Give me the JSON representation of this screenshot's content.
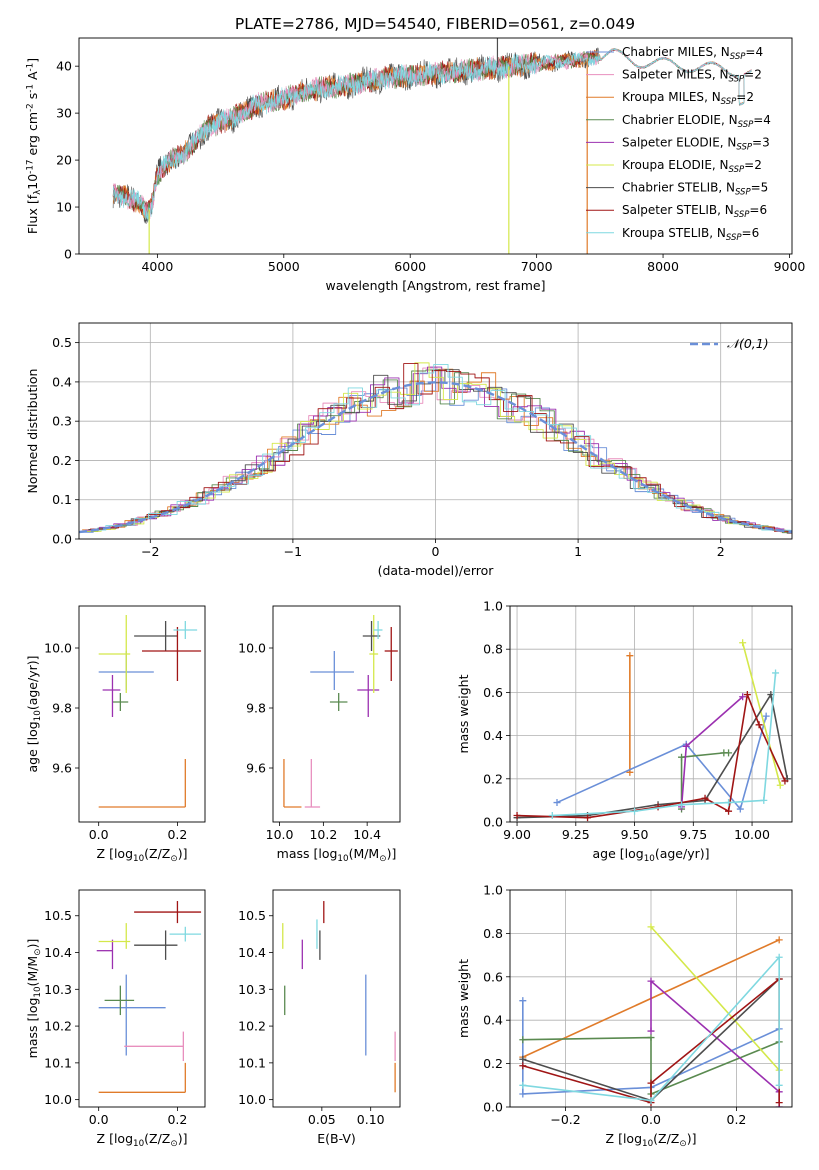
{
  "figure_title": "PLATE=2786, MJD=54540, FIBERID=0561, z=0.049",
  "colors": {
    "Chabrier MILES": "#6a8fd8",
    "Salpeter MILES": "#e88fbe",
    "Kroupa MILES": "#e07b2a",
    "Chabrier ELODIE": "#5a8a50",
    "Salpeter ELODIE": "#9b30b0",
    "Kroupa ELODIE": "#d4e84a",
    "Chabrier STELIB": "#4d4d4d",
    "Salpeter STELIB": "#a01515",
    "Kroupa STELIB": "#7fd8e0"
  },
  "chart_data": [
    {
      "id": "spectrum",
      "type": "line",
      "xlabel": "wavelength [Angstrom, rest frame]",
      "ylabel": "Flux [f$_\\lambda$10$^{-17}$ erg cm$^{-2}$ s$^{-1}$ A$^{-1}$]",
      "xlim": [
        3380,
        9020
      ],
      "ylim": [
        0,
        46
      ],
      "xticks": [
        4000,
        5000,
        6000,
        7000,
        8000,
        9000
      ],
      "yticks": [
        0,
        10,
        20,
        30,
        40
      ],
      "grid": false,
      "legend_position": "right",
      "legend": [
        {
          "model": "Chabrier MILES",
          "nssp": "4"
        },
        {
          "model": "Salpeter MILES",
          "nssp": "2"
        },
        {
          "model": "Kroupa MILES",
          "nssp": "2"
        },
        {
          "model": "Chabrier ELODIE",
          "nssp": "4"
        },
        {
          "model": "Salpeter ELODIE",
          "nssp": "3"
        },
        {
          "model": "Kroupa ELODIE",
          "nssp": "2"
        },
        {
          "model": "Chabrier STELIB",
          "nssp": "5"
        },
        {
          "model": "Salpeter STELIB",
          "nssp": "6"
        },
        {
          "model": "Kroupa STELIB",
          "nssp": "6"
        }
      ],
      "continuum": {
        "x": [
          3650,
          3750,
          3850,
          3920,
          3950,
          4000,
          4100,
          4200,
          4300,
          4400,
          4500,
          4600,
          4800,
          5000,
          5200,
          5400,
          5600,
          5800,
          6000,
          6200,
          6400,
          6600,
          6800,
          7000,
          7200,
          7400,
          7500,
          7600,
          7800,
          8000,
          8200,
          8400,
          8600,
          8700
        ],
        "y": [
          13,
          12,
          11,
          9,
          10,
          17,
          20,
          21,
          24,
          27,
          28,
          29,
          32,
          33,
          35,
          35.5,
          36.5,
          37.5,
          38,
          38.5,
          39,
          39.5,
          40,
          40.5,
          41,
          41.5,
          42,
          42.5,
          41,
          40.5,
          40,
          39.5,
          39,
          38.5
        ]
      },
      "spikes": [
        {
          "x": 3935,
          "y": 0,
          "color": "Kroupa ELODIE"
        },
        {
          "x": 6780,
          "y": 0,
          "color": "Kroupa ELODIE"
        },
        {
          "x": 7400,
          "y": 0,
          "color": "Kroupa MILES"
        },
        {
          "x": 6690,
          "y": 46,
          "color": "Chabrier STELIB"
        }
      ]
    },
    {
      "id": "residuals",
      "type": "histogram",
      "xlabel": "(data-model)/error",
      "ylabel": "Normed distribution",
      "xlim": [
        -2.5,
        2.5
      ],
      "ylim": [
        0,
        0.55
      ],
      "xticks": [
        -2,
        -1,
        0,
        1,
        2
      ],
      "yticks": [
        0.0,
        0.1,
        0.2,
        0.3,
        0.4,
        0.5
      ],
      "grid": true,
      "legend_position": "upper right",
      "bin_width": 0.1,
      "reference_curve": "normal(0,1)",
      "reference_label": "$\\mathcal{N}(0,1)$",
      "reference_color": "Chabrier MILES"
    },
    {
      "id": "age_vs_Z",
      "type": "errorbar",
      "xlabel": "Z [log$_{10}$(Z/Z$_\\odot$)]",
      "ylabel": "age  [log$_{10}$(age/yr)]",
      "xlim": [
        -0.05,
        0.27
      ],
      "ylim": [
        9.42,
        10.14
      ],
      "xticks": [
        0.0,
        0.2
      ],
      "yticks": [
        9.6,
        9.8,
        10.0
      ],
      "grid": false,
      "points": [
        {
          "model": "Chabrier MILES",
          "x": 0.07,
          "y": 9.92,
          "xerr": [
            0.07,
            0.07
          ],
          "yerr": [
            0.06,
            0.07
          ]
        },
        {
          "model": "Salpeter MILES",
          "x": 0.215,
          "y": 9.47,
          "xerr": [
            0.0,
            0.0
          ],
          "yerr": [
            0.0,
            0.0
          ]
        },
        {
          "model": "Kroupa MILES",
          "x": 0.22,
          "y": 9.47,
          "xerr": [
            0.22,
            0.0
          ],
          "yerr": [
            0.0,
            0.16
          ]
        },
        {
          "model": "Chabrier ELODIE",
          "x": 0.055,
          "y": 9.82,
          "xerr": [
            0.02,
            0.02
          ],
          "yerr": [
            0.03,
            0.03
          ]
        },
        {
          "model": "Salpeter ELODIE",
          "x": 0.035,
          "y": 9.86,
          "xerr": [
            0.025,
            0.02
          ],
          "yerr": [
            0.09,
            0.05
          ]
        },
        {
          "model": "Kroupa ELODIE",
          "x": 0.07,
          "y": 9.98,
          "xerr": [
            0.07,
            0.01
          ],
          "yerr": [
            0.13,
            0.13
          ]
        },
        {
          "model": "Chabrier STELIB",
          "x": 0.17,
          "y": 10.04,
          "xerr": [
            0.08,
            0.03
          ],
          "yerr": [
            0.05,
            0.05
          ]
        },
        {
          "model": "Salpeter STELIB",
          "x": 0.2,
          "y": 9.99,
          "xerr": [
            0.09,
            0.06
          ],
          "yerr": [
            0.1,
            0.08
          ]
        },
        {
          "model": "Kroupa STELIB",
          "x": 0.22,
          "y": 10.06,
          "xerr": [
            0.03,
            0.03
          ],
          "yerr": [
            0.03,
            0.03
          ]
        }
      ]
    },
    {
      "id": "age_vs_mass",
      "type": "errorbar",
      "xlabel": "mass [log$_{10}$(M/M$_\\odot$)]",
      "ylabel": "",
      "xlim": [
        9.97,
        10.55
      ],
      "ylim": [
        9.42,
        10.14
      ],
      "xticks": [
        10.0,
        10.2,
        10.4
      ],
      "yticks": [
        9.6,
        9.8,
        10.0
      ],
      "grid": false,
      "points": [
        {
          "model": "Chabrier MILES",
          "x": 10.25,
          "y": 9.92,
          "xerr": [
            0.11,
            0.09
          ],
          "yerr": [
            0.06,
            0.07
          ]
        },
        {
          "model": "Salpeter MILES",
          "x": 10.145,
          "y": 9.47,
          "xerr": [
            0.03,
            0.04
          ],
          "yerr": [
            0.0,
            0.16
          ]
        },
        {
          "model": "Kroupa MILES",
          "x": 10.02,
          "y": 9.47,
          "xerr": [
            0.0,
            0.08
          ],
          "yerr": [
            0.0,
            0.16
          ]
        },
        {
          "model": "Chabrier ELODIE",
          "x": 10.27,
          "y": 9.82,
          "xerr": [
            0.04,
            0.04
          ],
          "yerr": [
            0.03,
            0.03
          ]
        },
        {
          "model": "Salpeter ELODIE",
          "x": 10.405,
          "y": 9.86,
          "xerr": [
            0.05,
            0.05
          ],
          "yerr": [
            0.09,
            0.05
          ]
        },
        {
          "model": "Kroupa ELODIE",
          "x": 10.43,
          "y": 9.98,
          "xerr": [
            0.02,
            0.02
          ],
          "yerr": [
            0.13,
            0.13
          ]
        },
        {
          "model": "Chabrier STELIB",
          "x": 10.42,
          "y": 10.04,
          "xerr": [
            0.04,
            0.04
          ],
          "yerr": [
            0.05,
            0.05
          ]
        },
        {
          "model": "Salpeter STELIB",
          "x": 10.51,
          "y": 9.99,
          "xerr": [
            0.03,
            0.03
          ],
          "yerr": [
            0.1,
            0.08
          ]
        },
        {
          "model": "Kroupa STELIB",
          "x": 10.45,
          "y": 10.06,
          "xerr": [
            0.02,
            0.02
          ],
          "yerr": [
            0.03,
            0.03
          ]
        }
      ]
    },
    {
      "id": "mass_weight_vs_age",
      "type": "line",
      "xlabel": "age  [log$_{10}$(age/yr)]",
      "ylabel": "mass weight",
      "xlim": [
        8.97,
        10.17
      ],
      "ylim": [
        0,
        1.0
      ],
      "xticks": [
        9.0,
        9.25,
        9.5,
        9.75,
        10.0
      ],
      "yticks": [
        0.0,
        0.2,
        0.4,
        0.6,
        0.8,
        1.0
      ],
      "grid": true,
      "series": [
        {
          "model": "Kroupa MILES",
          "x": [
            9.48,
            9.48
          ],
          "y": [
            0.23,
            0.77
          ]
        },
        {
          "model": "Chabrier MILES",
          "x": [
            9.17,
            9.72,
            9.95,
            10.06
          ],
          "y": [
            0.09,
            0.36,
            0.06,
            0.49
          ]
        },
        {
          "model": "Chabrier ELODIE",
          "x": [
            9.7,
            9.7,
            9.88,
            9.9
          ],
          "y": [
            0.06,
            0.3,
            0.32,
            0.32
          ]
        },
        {
          "model": "Salpeter ELODIE",
          "x": [
            9.7,
            9.72,
            9.96
          ],
          "y": [
            0.07,
            0.35,
            0.58
          ]
        },
        {
          "model": "Kroupa ELODIE",
          "x": [
            9.96,
            10.12
          ],
          "y": [
            0.83,
            0.17
          ]
        },
        {
          "model": "Chabrier STELIB",
          "x": [
            9.0,
            9.3,
            9.6,
            9.8,
            10.08,
            10.15
          ],
          "y": [
            0.02,
            0.03,
            0.08,
            0.1,
            0.59,
            0.2
          ]
        },
        {
          "model": "Salpeter STELIB",
          "x": [
            9.0,
            9.3,
            9.6,
            9.8,
            9.9,
            9.98,
            10.03,
            10.14
          ],
          "y": [
            0.03,
            0.02,
            0.07,
            0.11,
            0.05,
            0.59,
            0.45,
            0.19
          ]
        },
        {
          "model": "Kroupa STELIB",
          "x": [
            9.15,
            9.5,
            9.7,
            9.9,
            10.05,
            10.1
          ],
          "y": [
            0.03,
            0.05,
            0.08,
            0.09,
            0.1,
            0.69
          ]
        }
      ]
    },
    {
      "id": "mass_vs_Z",
      "type": "errorbar",
      "xlabel": "Z [log$_{10}$(Z/Z$_\\odot$)]",
      "ylabel": "mass [log$_{10}$(M/M$_\\odot$)]",
      "xlim": [
        -0.05,
        0.27
      ],
      "ylim": [
        9.98,
        10.57
      ],
      "xticks": [
        0.0,
        0.2
      ],
      "yticks": [
        10.0,
        10.1,
        10.2,
        10.3,
        10.4,
        10.5
      ],
      "grid": false,
      "points": [
        {
          "model": "Chabrier MILES",
          "x": 0.07,
          "y": 10.25,
          "xerr": [
            0.07,
            0.1
          ],
          "yerr": [
            0.13,
            0.09
          ]
        },
        {
          "model": "Salpeter MILES",
          "x": 0.215,
          "y": 10.145,
          "xerr": [
            0.15,
            0.0
          ],
          "yerr": [
            0.04,
            0.04
          ]
        },
        {
          "model": "Kroupa MILES",
          "x": 0.22,
          "y": 10.02,
          "xerr": [
            0.22,
            0.0
          ],
          "yerr": [
            0.0,
            0.08
          ]
        },
        {
          "model": "Chabrier ELODIE",
          "x": 0.055,
          "y": 10.27,
          "xerr": [
            0.04,
            0.035
          ],
          "yerr": [
            0.04,
            0.04
          ]
        },
        {
          "model": "Salpeter ELODIE",
          "x": 0.035,
          "y": 10.405,
          "xerr": [
            0.04,
            0.0
          ],
          "yerr": [
            0.05,
            0.03
          ]
        },
        {
          "model": "Kroupa ELODIE",
          "x": 0.07,
          "y": 10.43,
          "xerr": [
            0.07,
            0.01
          ],
          "yerr": [
            0.02,
            0.05
          ]
        },
        {
          "model": "Chabrier STELIB",
          "x": 0.17,
          "y": 10.42,
          "xerr": [
            0.08,
            0.03
          ],
          "yerr": [
            0.04,
            0.04
          ]
        },
        {
          "model": "Salpeter STELIB",
          "x": 0.2,
          "y": 10.51,
          "xerr": [
            0.11,
            0.06
          ],
          "yerr": [
            0.03,
            0.03
          ]
        },
        {
          "model": "Kroupa STELIB",
          "x": 0.22,
          "y": 10.45,
          "xerr": [
            0.04,
            0.04
          ],
          "yerr": [
            0.02,
            0.02
          ]
        }
      ]
    },
    {
      "id": "mass_vs_ebv",
      "type": "errorbar",
      "xlabel": "E(B-V)",
      "ylabel": "",
      "xlim": [
        0.0,
        0.13
      ],
      "ylim": [
        9.98,
        10.57
      ],
      "xticks": [
        0.05,
        0.1
      ],
      "yticks": [
        10.0,
        10.1,
        10.2,
        10.3,
        10.4,
        10.5
      ],
      "grid": false,
      "points": [
        {
          "model": "Chabrier MILES",
          "x": 0.095,
          "y": 10.25,
          "xerr": [
            0,
            0
          ],
          "yerr": [
            0.13,
            0.09
          ]
        },
        {
          "model": "Salpeter MILES",
          "x": 0.125,
          "y": 10.145,
          "xerr": [
            0,
            0
          ],
          "yerr": [
            0.04,
            0.04
          ]
        },
        {
          "model": "Kroupa MILES",
          "x": 0.125,
          "y": 10.02,
          "xerr": [
            0,
            0
          ],
          "yerr": [
            0.0,
            0.08
          ]
        },
        {
          "model": "Chabrier ELODIE",
          "x": 0.012,
          "y": 10.27,
          "xerr": [
            0,
            0
          ],
          "yerr": [
            0.04,
            0.04
          ]
        },
        {
          "model": "Salpeter ELODIE",
          "x": 0.03,
          "y": 10.405,
          "xerr": [
            0,
            0
          ],
          "yerr": [
            0.05,
            0.03
          ]
        },
        {
          "model": "Kroupa ELODIE",
          "x": 0.01,
          "y": 10.43,
          "xerr": [
            0,
            0
          ],
          "yerr": [
            0.02,
            0.05
          ]
        },
        {
          "model": "Chabrier STELIB",
          "x": 0.048,
          "y": 10.42,
          "xerr": [
            0,
            0
          ],
          "yerr": [
            0.04,
            0.04
          ]
        },
        {
          "model": "Salpeter STELIB",
          "x": 0.052,
          "y": 10.51,
          "xerr": [
            0,
            0
          ],
          "yerr": [
            0.03,
            0.03
          ]
        },
        {
          "model": "Kroupa STELIB",
          "x": 0.045,
          "y": 10.45,
          "xerr": [
            0,
            0
          ],
          "yerr": [
            0.04,
            0.04
          ]
        }
      ]
    },
    {
      "id": "mass_weight_vs_Z",
      "type": "line",
      "xlabel": "Z [log$_{10}$(Z/Z$_\\odot$)]",
      "ylabel": "mass weight",
      "xlim": [
        -0.33,
        0.33
      ],
      "ylim": [
        0,
        1.0
      ],
      "xticks": [
        -0.2,
        0.0,
        0.2
      ],
      "yticks": [
        0.0,
        0.2,
        0.4,
        0.6,
        0.8,
        1.0
      ],
      "grid": true,
      "series": [
        {
          "model": "Kroupa MILES",
          "x": [
            -0.3,
            0.3
          ],
          "y": [
            0.23,
            0.77
          ]
        },
        {
          "model": "Chabrier MILES",
          "x": [
            -0.3,
            -0.3,
            0.0,
            0.3
          ],
          "y": [
            0.49,
            0.06,
            0.09,
            0.36
          ]
        },
        {
          "model": "Chabrier ELODIE",
          "x": [
            -0.3,
            0.0,
            0.0,
            0.3
          ],
          "y": [
            0.31,
            0.32,
            0.06,
            0.3
          ]
        },
        {
          "model": "Salpeter ELODIE",
          "x": [
            0.0,
            0.0,
            0.3,
            0.3
          ],
          "y": [
            0.35,
            0.58,
            0.07,
            0.0
          ]
        },
        {
          "model": "Kroupa ELODIE",
          "x": [
            0.0,
            0.3
          ],
          "y": [
            0.83,
            0.17
          ]
        },
        {
          "model": "Chabrier STELIB",
          "x": [
            -0.3,
            0.0,
            0.3
          ],
          "y": [
            0.22,
            0.03,
            0.59
          ]
        },
        {
          "model": "Salpeter STELIB",
          "x": [
            -0.3,
            0.0,
            0.0,
            0.3,
            0.3
          ],
          "y": [
            0.19,
            0.02,
            0.11,
            0.59,
            0.02
          ]
        },
        {
          "model": "Kroupa STELIB",
          "x": [
            -0.3,
            0.0,
            0.3,
            0.3
          ],
          "y": [
            0.1,
            0.03,
            0.69,
            0.1
          ]
        }
      ]
    }
  ]
}
